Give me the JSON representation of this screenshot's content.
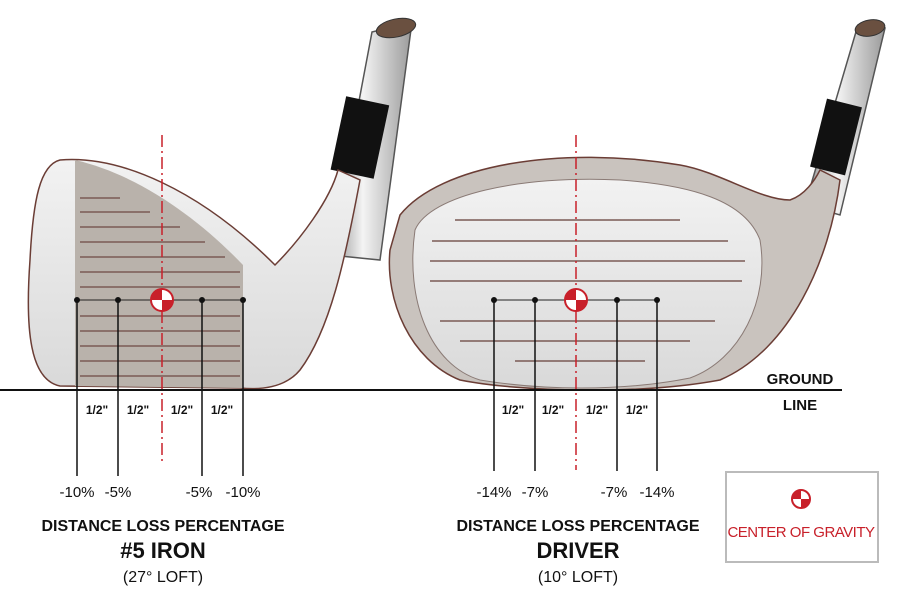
{
  "iron": {
    "spacing_labels": [
      "1/2\"",
      "1/2\"",
      "1/2\"",
      "1/2\""
    ],
    "loss_labels": [
      "-10%",
      "-5%",
      "-5%",
      "-10%"
    ],
    "caption": "DISTANCE LOSS PERCENTAGE",
    "club_name": "#5 IRON",
    "loft": "(27° LOFT)"
  },
  "driver": {
    "spacing_labels": [
      "1/2\"",
      "1/2\"",
      "1/2\"",
      "1/2\""
    ],
    "loss_labels": [
      "-14%",
      "-7%",
      "-7%",
      "-14%"
    ],
    "caption": "DISTANCE LOSS PERCENTAGE",
    "club_name": "DRIVER",
    "loft": "(10° LOFT)"
  },
  "ground_line": {
    "line1": "GROUND",
    "line2": "LINE"
  },
  "legend": {
    "label": "CENTER OF GRAVITY",
    "icon": "center-of-gravity-icon"
  },
  "colors": {
    "accent_red": "#c8202a",
    "shading": "#b9b2ab",
    "ferrule": "#111111"
  }
}
